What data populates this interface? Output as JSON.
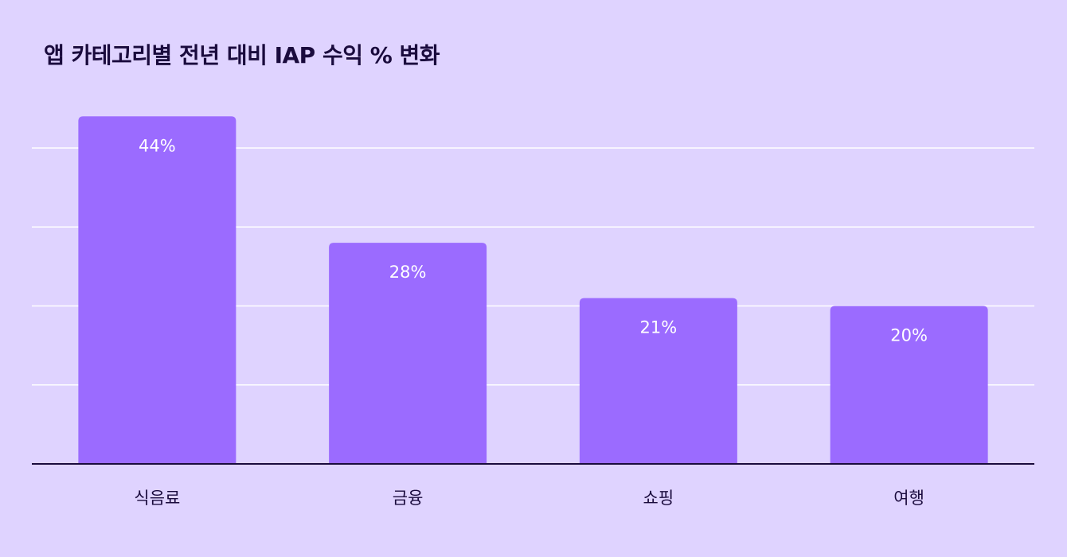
{
  "colors": {
    "background": "#dfd3ff",
    "bar": "#9b6bff",
    "gridline": "#ffffff",
    "axis": "#1a0b3d",
    "text": "#1a0b3d",
    "data_label": "#ffffff"
  },
  "chart_data": {
    "type": "bar",
    "title": "앱 카테고리별 전년 대비 IAP 수익 % 변화",
    "categories": [
      "식음료",
      "금융",
      "쇼핑",
      "여행"
    ],
    "values": [
      44,
      28,
      21,
      20
    ],
    "data_labels": [
      "44%",
      "28%",
      "21%",
      "20%"
    ],
    "ylim": [
      0,
      40
    ],
    "grid": true,
    "legend": "none"
  }
}
